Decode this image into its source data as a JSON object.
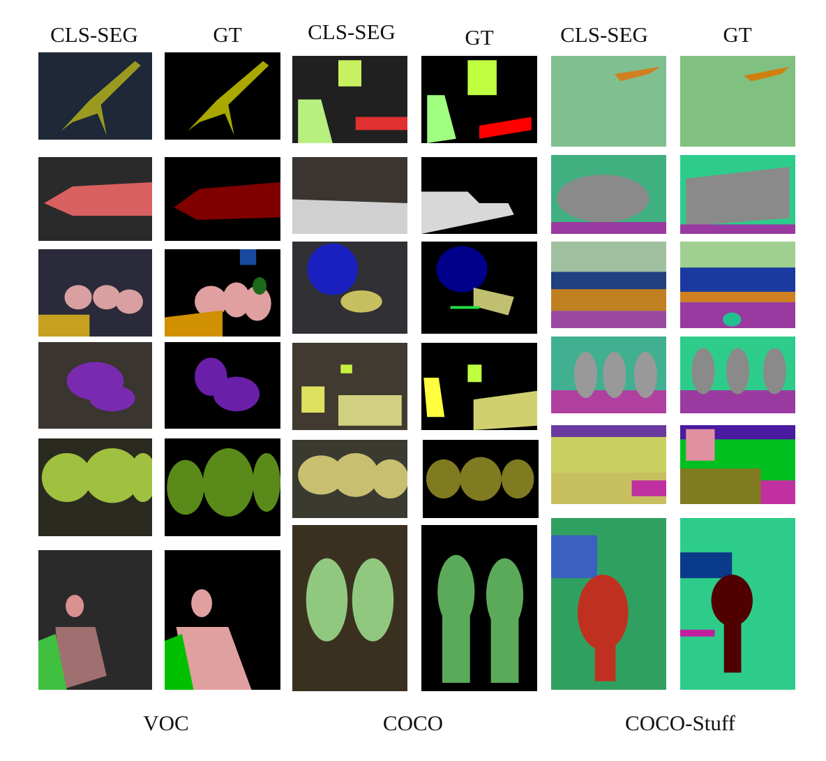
{
  "column_headers": [
    "CLS-SEG",
    "GT",
    "CLS-SEG",
    "GT",
    "CLS-SEG",
    "GT"
  ],
  "dataset_labels": [
    "VOC",
    "COCO",
    "COCO-Stuff"
  ],
  "colors": {
    "background_gt": "#000000",
    "bird": "#a8a800",
    "aeroplane": "#800000",
    "person": "#e0a0a0",
    "dog": "#6a1fa8",
    "cow": "#5a8a1a",
    "chair": "#00c000",
    "tv": "#c0ff40",
    "stuff_green": "#2ecc8a",
    "stuff_purple": "#9a3aa0",
    "elephant_gray": "#8a8a8a"
  }
}
